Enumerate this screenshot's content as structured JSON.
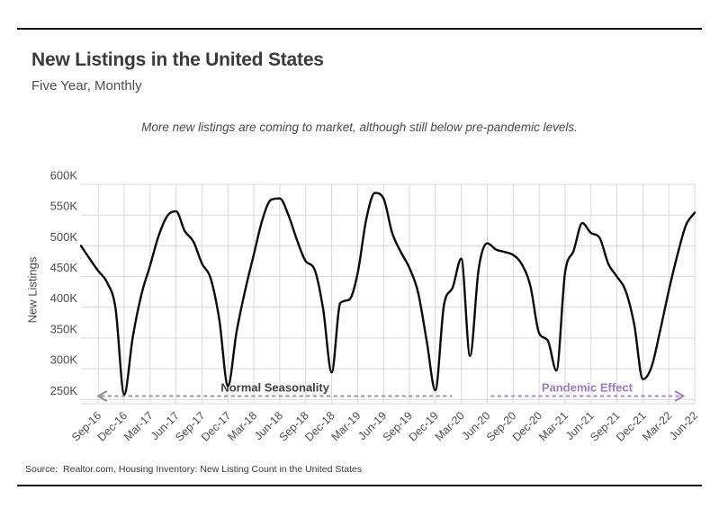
{
  "page": {
    "title": "New Listings in the United States",
    "subtitle": "Five Year, Monthly",
    "note": "More new listings are coming to market, although still below pre-pandemic levels.",
    "source": "Source:  Realtor.com, Housing Inventory: New Listing Count in the United States"
  },
  "colors": {
    "line": "#0a0a0a",
    "grid": "#d9d9d9",
    "axis_text": "#4d4d4d",
    "gray_arrow": "#8c8c8c",
    "normal_label": "#3f3f3f",
    "purple": "#9a7bc3",
    "rule": "#111111"
  },
  "chart_data": {
    "type": "line",
    "title": "New Listings in the United States",
    "subtitle": "Five Year, Monthly",
    "ylabel": "New Listings",
    "xlabel": "",
    "unit": "K",
    "ylim": [
      250,
      600
    ],
    "grid": true,
    "x": [
      "Jul-16",
      "Aug-16",
      "Sep-16",
      "Oct-16",
      "Nov-16",
      "Dec-16",
      "Jan-17",
      "Feb-17",
      "Mar-17",
      "Apr-17",
      "May-17",
      "Jun-17",
      "Jul-17",
      "Aug-17",
      "Sep-17",
      "Oct-17",
      "Nov-17",
      "Dec-17",
      "Jan-18",
      "Feb-18",
      "Mar-18",
      "Apr-18",
      "May-18",
      "Jun-18",
      "Jul-18",
      "Aug-18",
      "Sep-18",
      "Oct-18",
      "Nov-18",
      "Dec-18",
      "Jan-19",
      "Feb-19",
      "Mar-19",
      "Apr-19",
      "May-19",
      "Jun-19",
      "Jul-19",
      "Aug-19",
      "Sep-19",
      "Oct-19",
      "Nov-19",
      "Dec-19",
      "Jan-20",
      "Feb-20",
      "Mar-20",
      "Apr-20",
      "May-20",
      "Jun-20",
      "Jul-20",
      "Aug-20",
      "Sep-20",
      "Oct-20",
      "Nov-20",
      "Dec-20",
      "Jan-21",
      "Feb-21",
      "Mar-21",
      "Apr-21",
      "May-21",
      "Jun-21",
      "Jul-21",
      "Aug-21",
      "Sep-21",
      "Oct-21",
      "Nov-21",
      "Dec-21",
      "Jan-22",
      "Feb-22",
      "Mar-22",
      "Apr-22",
      "May-22",
      "Jun-22"
    ],
    "values": [
      500,
      479,
      459,
      441,
      398,
      258,
      352,
      421,
      468,
      517,
      549,
      556,
      524,
      507,
      471,
      447,
      380,
      272,
      360,
      428,
      486,
      543,
      575,
      577,
      550,
      509,
      475,
      462,
      398,
      294,
      407,
      412,
      455,
      543,
      586,
      577,
      521,
      490,
      464,
      424,
      345,
      265,
      404,
      432,
      479,
      321,
      462,
      504,
      494,
      490,
      485,
      470,
      434,
      358,
      346,
      297,
      456,
      492,
      537,
      521,
      513,
      471,
      450,
      427,
      372,
      283,
      303,
      362,
      427,
      485,
      534,
      554
    ],
    "yticks": [
      600,
      550,
      500,
      450,
      400,
      350,
      300,
      250
    ],
    "xticks": [
      "Sep-16",
      "Dec-16",
      "Mar-17",
      "Jun-17",
      "Sep-17",
      "Dec-17",
      "Mar-18",
      "Jun-18",
      "Sep-18",
      "Dec-18",
      "Mar-19",
      "Jun-19",
      "Sep-19",
      "Dec-19",
      "Mar-20",
      "Jun-20",
      "Sep-20",
      "Dec-20",
      "Mar-21",
      "Jun-21",
      "Sep-21",
      "Dec-21",
      "Mar-22",
      "Jun-22"
    ],
    "legend": [],
    "annotations": [
      {
        "label": "Normal Seasonality",
        "arrow": "left",
        "start_idx": 2.0,
        "end_idx": 42.9,
        "color": "#8c8c8c",
        "text_color": "#3f3f3f"
      },
      {
        "label": "Pandemic Effect",
        "arrow": "right",
        "start_idx": 47.4,
        "end_idx": 69.7,
        "color": "#9a7bc3",
        "text_color": "#9a7bc3"
      }
    ]
  }
}
